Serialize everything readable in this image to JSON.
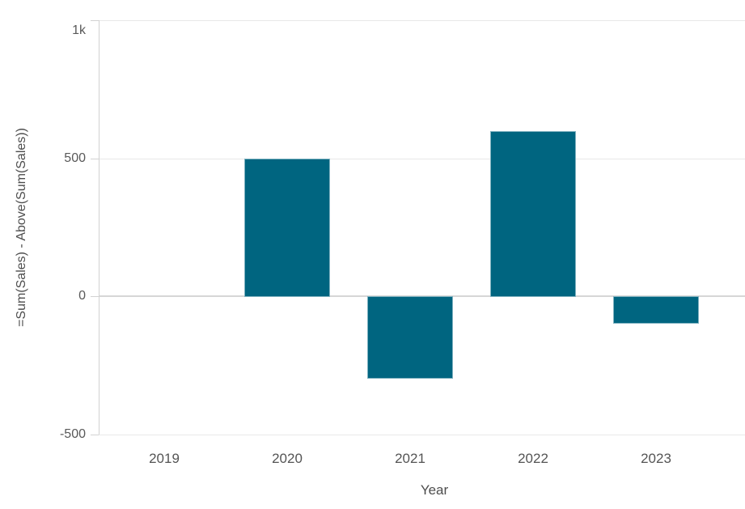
{
  "chart_data": {
    "type": "bar",
    "categories": [
      "2019",
      "2020",
      "2021",
      "2022",
      "2023"
    ],
    "values": [
      null,
      500,
      -300,
      600,
      -100
    ],
    "title": "",
    "xlabel": "Year",
    "ylabel": "=Sum(Sales) - Above(Sum(Sales))",
    "ylim": [
      -500,
      1000
    ],
    "yticks": [
      {
        "value": 1000,
        "label": "1k"
      },
      {
        "value": 500,
        "label": "500"
      },
      {
        "value": 0,
        "label": "0"
      },
      {
        "value": -500,
        "label": "-500"
      }
    ],
    "grid": true,
    "legend": false,
    "bar_color": "#006580",
    "grid_color": "#e8e8e8",
    "zero_line_color": "#d6d6d6",
    "axis_line_color": "#d2d2d2",
    "tick_label_color": "#595959",
    "axis_title_color": "#4d4d4d",
    "background_color": "#ffffff"
  }
}
